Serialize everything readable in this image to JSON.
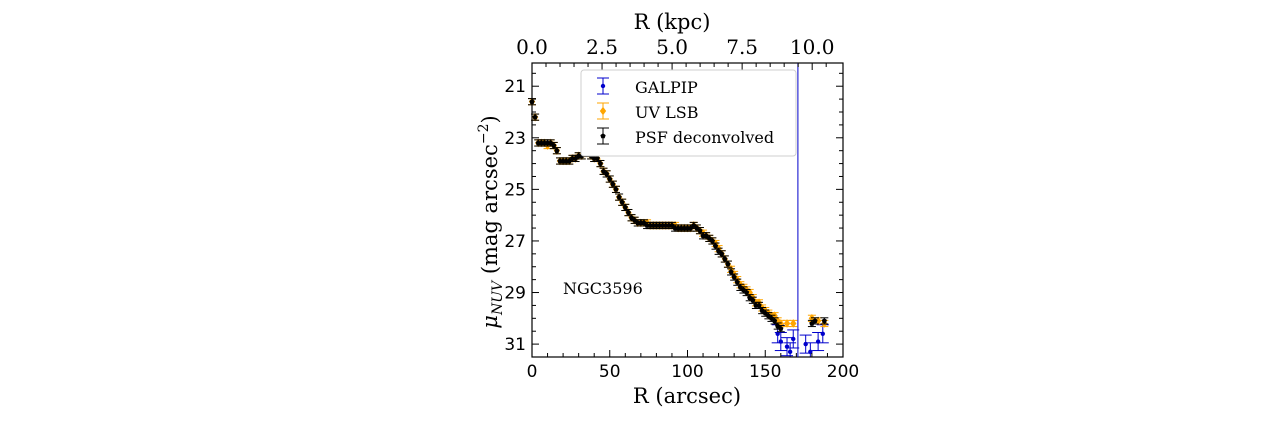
{
  "chart_data": {
    "type": "scatter",
    "annotation": "NGC3596",
    "xlabel": "R (arcsec)",
    "ylabel_main": "μ",
    "ylabel_sub": "NUV",
    "ylabel_rest": " (mag arcsec",
    "ylabel_exp": "−2",
    "ylabel_close": ")",
    "xlim": [
      0,
      200
    ],
    "ylim": [
      31.5,
      20.1
    ],
    "x_ticks": [
      0,
      50,
      100,
      150,
      200
    ],
    "x_tick_labels": [
      "0",
      "50",
      "100",
      "150",
      "200"
    ],
    "y_ticks": [
      21,
      23,
      25,
      27,
      29,
      31
    ],
    "y_tick_labels": [
      "21",
      "23",
      "25",
      "27",
      "29",
      "31"
    ],
    "top_axis": {
      "label": "R (kpc)",
      "ticks": [
        0,
        2.5,
        5.0,
        7.5,
        10.0
      ],
      "tick_labels": [
        "0.0",
        "2.5",
        "5.0",
        "7.5",
        "10.0"
      ],
      "kpc_per_arcsec": 0.0555
    },
    "vline_x": 171,
    "legend_position": "top-center",
    "series": [
      {
        "name": "GALPIP",
        "color": "#0000cc",
        "marker": "dot",
        "points": [
          [
            158,
            30.6
          ],
          [
            160,
            30.9
          ],
          [
            164,
            31.1
          ],
          [
            166,
            31.3
          ],
          [
            168,
            30.8
          ],
          [
            176,
            31.0
          ],
          [
            179,
            31.3
          ],
          [
            184,
            30.9
          ],
          [
            187,
            30.6
          ]
        ]
      },
      {
        "name": "UV LSB",
        "color": "#ffa500",
        "marker": "diamond",
        "points": [
          [
            0,
            21.6
          ],
          [
            2,
            22.2
          ],
          [
            4,
            23.2
          ],
          [
            6,
            23.2
          ],
          [
            8,
            23.2
          ],
          [
            10,
            23.3
          ],
          [
            12,
            23.2
          ],
          [
            14,
            23.3
          ],
          [
            16,
            23.5
          ],
          [
            18,
            23.9
          ],
          [
            20,
            23.9
          ],
          [
            22,
            23.9
          ],
          [
            24,
            23.9
          ],
          [
            26,
            23.8
          ],
          [
            28,
            23.8
          ],
          [
            30,
            23.7
          ],
          [
            32,
            23.7
          ],
          [
            34,
            23.6
          ],
          [
            36,
            23.6
          ],
          [
            38,
            23.7
          ],
          [
            40,
            23.8
          ],
          [
            42,
            23.8
          ],
          [
            44,
            24.0
          ],
          [
            46,
            24.3
          ],
          [
            48,
            24.4
          ],
          [
            50,
            24.6
          ],
          [
            52,
            24.8
          ],
          [
            54,
            25.0
          ],
          [
            56,
            25.3
          ],
          [
            58,
            25.5
          ],
          [
            60,
            25.7
          ],
          [
            62,
            25.9
          ],
          [
            64,
            26.1
          ],
          [
            66,
            26.2
          ],
          [
            68,
            26.3
          ],
          [
            70,
            26.3
          ],
          [
            72,
            26.3
          ],
          [
            74,
            26.3
          ],
          [
            76,
            26.4
          ],
          [
            78,
            26.4
          ],
          [
            80,
            26.4
          ],
          [
            82,
            26.4
          ],
          [
            84,
            26.4
          ],
          [
            86,
            26.4
          ],
          [
            88,
            26.4
          ],
          [
            90,
            26.4
          ],
          [
            92,
            26.4
          ],
          [
            94,
            26.5
          ],
          [
            96,
            26.5
          ],
          [
            98,
            26.5
          ],
          [
            100,
            26.5
          ],
          [
            102,
            26.5
          ],
          [
            104,
            26.4
          ],
          [
            106,
            26.5
          ],
          [
            108,
            26.6
          ],
          [
            110,
            26.7
          ],
          [
            112,
            26.8
          ],
          [
            114,
            26.9
          ],
          [
            116,
            27.0
          ],
          [
            118,
            27.1
          ],
          [
            120,
            27.3
          ],
          [
            122,
            27.5
          ],
          [
            124,
            27.7
          ],
          [
            126,
            27.9
          ],
          [
            128,
            28.1
          ],
          [
            130,
            28.3
          ],
          [
            132,
            28.5
          ],
          [
            134,
            28.7
          ],
          [
            136,
            28.8
          ],
          [
            138,
            28.9
          ],
          [
            140,
            29.0
          ],
          [
            142,
            29.2
          ],
          [
            144,
            29.4
          ],
          [
            146,
            29.4
          ],
          [
            148,
            29.6
          ],
          [
            150,
            29.7
          ],
          [
            152,
            29.8
          ],
          [
            154,
            29.9
          ],
          [
            156,
            29.9
          ],
          [
            158,
            30.1
          ],
          [
            160,
            30.2
          ],
          [
            164,
            30.2
          ],
          [
            168,
            30.2
          ],
          [
            180,
            30.0
          ],
          [
            184,
            30.1
          ],
          [
            188,
            30.2
          ]
        ]
      },
      {
        "name": "PSF deconvolved",
        "color": "#000000",
        "marker": "pentagon",
        "points": [
          [
            0,
            21.6
          ],
          [
            2,
            22.2
          ],
          [
            4,
            23.2
          ],
          [
            6,
            23.2
          ],
          [
            8,
            23.2
          ],
          [
            10,
            23.2
          ],
          [
            12,
            23.2
          ],
          [
            14,
            23.3
          ],
          [
            16,
            23.5
          ],
          [
            18,
            23.9
          ],
          [
            20,
            23.9
          ],
          [
            22,
            23.9
          ],
          [
            24,
            23.9
          ],
          [
            26,
            23.8
          ],
          [
            28,
            23.8
          ],
          [
            30,
            23.7
          ],
          [
            32,
            23.7
          ],
          [
            34,
            23.6
          ],
          [
            36,
            23.6
          ],
          [
            38,
            23.7
          ],
          [
            40,
            23.8
          ],
          [
            42,
            23.8
          ],
          [
            44,
            24.0
          ],
          [
            46,
            24.3
          ],
          [
            48,
            24.4
          ],
          [
            50,
            24.6
          ],
          [
            52,
            24.8
          ],
          [
            54,
            25.0
          ],
          [
            56,
            25.3
          ],
          [
            58,
            25.5
          ],
          [
            60,
            25.7
          ],
          [
            62,
            25.9
          ],
          [
            64,
            26.1
          ],
          [
            66,
            26.2
          ],
          [
            68,
            26.3
          ],
          [
            70,
            26.3
          ],
          [
            72,
            26.3
          ],
          [
            74,
            26.4
          ],
          [
            76,
            26.4
          ],
          [
            78,
            26.4
          ],
          [
            80,
            26.4
          ],
          [
            82,
            26.4
          ],
          [
            84,
            26.4
          ],
          [
            86,
            26.4
          ],
          [
            88,
            26.4
          ],
          [
            90,
            26.4
          ],
          [
            92,
            26.5
          ],
          [
            94,
            26.5
          ],
          [
            96,
            26.5
          ],
          [
            98,
            26.5
          ],
          [
            100,
            26.5
          ],
          [
            102,
            26.5
          ],
          [
            104,
            26.4
          ],
          [
            106,
            26.5
          ],
          [
            108,
            26.6
          ],
          [
            110,
            26.8
          ],
          [
            112,
            26.8
          ],
          [
            114,
            26.9
          ],
          [
            116,
            27.0
          ],
          [
            118,
            27.2
          ],
          [
            120,
            27.4
          ],
          [
            122,
            27.5
          ],
          [
            124,
            27.7
          ],
          [
            126,
            27.9
          ],
          [
            128,
            28.2
          ],
          [
            130,
            28.4
          ],
          [
            132,
            28.6
          ],
          [
            134,
            28.8
          ],
          [
            136,
            28.9
          ],
          [
            138,
            29.0
          ],
          [
            140,
            29.2
          ],
          [
            142,
            29.3
          ],
          [
            144,
            29.5
          ],
          [
            146,
            29.5
          ],
          [
            148,
            29.7
          ],
          [
            150,
            29.8
          ],
          [
            152,
            29.9
          ],
          [
            154,
            30.0
          ],
          [
            156,
            30.1
          ],
          [
            158,
            30.3
          ],
          [
            160,
            30.4
          ],
          [
            180,
            30.2
          ],
          [
            182,
            30.1
          ],
          [
            188,
            30.1
          ]
        ]
      }
    ]
  }
}
